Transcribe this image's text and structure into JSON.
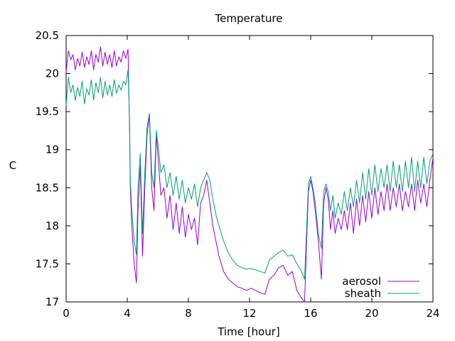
{
  "chart_data": {
    "type": "line",
    "title": "Temperature",
    "xlabel": "Time [hour]",
    "ylabel": "C",
    "xlim": [
      0,
      24
    ],
    "ylim": [
      17,
      20.5
    ],
    "xticks": [
      0,
      4,
      8,
      12,
      16,
      20,
      24
    ],
    "yticks": [
      17,
      17.5,
      18,
      18.5,
      19,
      19.5,
      20,
      20.5
    ],
    "xtick_labels": [
      "0",
      "4",
      "8",
      "12",
      "16",
      "20",
      "24"
    ],
    "ytick_labels": [
      "17",
      "17.5",
      "18",
      "18.5",
      "19",
      "19.5",
      "20",
      "20.5"
    ],
    "grid": false,
    "legend_position": "bottom-right",
    "series": [
      {
        "name": "aerosol",
        "color": "#9400d3",
        "x": [
          0,
          0.15,
          0.3,
          0.45,
          0.6,
          0.75,
          0.9,
          1.05,
          1.2,
          1.35,
          1.5,
          1.65,
          1.8,
          1.95,
          2.1,
          2.25,
          2.4,
          2.55,
          2.7,
          2.85,
          3.0,
          3.15,
          3.3,
          3.45,
          3.6,
          3.75,
          3.9,
          4.05,
          4.15,
          4.2,
          4.3,
          4.45,
          4.6,
          4.7,
          4.85,
          5.0,
          5.15,
          5.3,
          5.45,
          5.6,
          5.75,
          5.9,
          6.05,
          6.2,
          6.4,
          6.6,
          6.8,
          7.0,
          7.2,
          7.4,
          7.6,
          7.8,
          8.0,
          8.2,
          8.4,
          8.6,
          8.8,
          9.0,
          9.2,
          9.4,
          9.6,
          9.8,
          10.0,
          10.3,
          10.6,
          10.9,
          11.2,
          11.5,
          11.8,
          12.1,
          12.4,
          12.7,
          13.0,
          13.3,
          13.6,
          13.9,
          14.2,
          14.5,
          14.8,
          15.1,
          15.4,
          15.6,
          15.7,
          15.85,
          16.0,
          16.15,
          16.3,
          16.5,
          16.7,
          16.85,
          17.0,
          17.15,
          17.3,
          17.45,
          17.6,
          17.8,
          18.0,
          18.2,
          18.4,
          18.6,
          18.8,
          19.0,
          19.2,
          19.4,
          19.6,
          19.8,
          20.0,
          20.2,
          20.4,
          20.6,
          20.8,
          21.0,
          21.2,
          21.4,
          21.6,
          21.8,
          22.0,
          22.2,
          22.4,
          22.6,
          22.8,
          23.0,
          23.2,
          23.4,
          23.6,
          23.8,
          24.0
        ],
        "y": [
          20.02,
          20.3,
          20.18,
          20.25,
          20.05,
          20.2,
          20.1,
          20.28,
          20.08,
          20.22,
          20.12,
          20.3,
          20.05,
          20.25,
          20.15,
          20.35,
          20.1,
          20.28,
          20.12,
          20.25,
          20.08,
          20.3,
          20.1,
          20.22,
          20.15,
          20.3,
          20.2,
          20.32,
          19.3,
          18.5,
          18.0,
          17.5,
          17.25,
          18.2,
          18.8,
          17.6,
          18.5,
          19.2,
          19.45,
          18.5,
          18.2,
          19.2,
          18.8,
          18.4,
          18.5,
          18.1,
          18.4,
          17.95,
          18.3,
          17.9,
          18.25,
          17.85,
          18.15,
          17.95,
          18.1,
          17.75,
          18.3,
          18.4,
          18.6,
          18.3,
          18.0,
          17.8,
          17.6,
          17.4,
          17.3,
          17.25,
          17.2,
          17.18,
          17.15,
          17.18,
          17.15,
          17.12,
          17.1,
          17.3,
          17.35,
          17.45,
          17.48,
          17.35,
          17.4,
          17.15,
          17.05,
          16.98,
          17.6,
          18.45,
          18.6,
          18.45,
          18.2,
          17.8,
          17.3,
          18.3,
          18.5,
          18.35,
          17.95,
          18.2,
          17.9,
          18.1,
          17.95,
          18.2,
          17.95,
          18.3,
          17.9,
          18.35,
          18.0,
          18.4,
          18.05,
          18.45,
          18.1,
          18.5,
          18.15,
          18.45,
          18.2,
          18.55,
          18.2,
          18.5,
          18.25,
          18.55,
          18.2,
          18.45,
          18.25,
          18.55,
          18.2,
          18.6,
          18.3,
          18.55,
          18.25,
          18.6,
          18.9
        ]
      },
      {
        "name": "sheath",
        "color": "#009e73",
        "x": [
          0,
          0.15,
          0.3,
          0.45,
          0.6,
          0.75,
          0.9,
          1.05,
          1.2,
          1.35,
          1.5,
          1.65,
          1.8,
          1.95,
          2.1,
          2.25,
          2.4,
          2.55,
          2.7,
          2.85,
          3.0,
          3.15,
          3.3,
          3.45,
          3.6,
          3.75,
          3.9,
          4.05,
          4.15,
          4.2,
          4.3,
          4.45,
          4.6,
          4.7,
          4.85,
          5.0,
          5.15,
          5.3,
          5.45,
          5.6,
          5.75,
          5.9,
          6.05,
          6.2,
          6.4,
          6.6,
          6.8,
          7.0,
          7.2,
          7.4,
          7.6,
          7.8,
          8.0,
          8.2,
          8.4,
          8.6,
          8.8,
          9.0,
          9.2,
          9.4,
          9.6,
          9.8,
          10.0,
          10.3,
          10.6,
          10.9,
          11.2,
          11.5,
          11.8,
          12.1,
          12.4,
          12.7,
          13.0,
          13.3,
          13.6,
          13.9,
          14.2,
          14.5,
          14.8,
          15.1,
          15.4,
          15.6,
          15.7,
          15.85,
          16.0,
          16.15,
          16.3,
          16.5,
          16.7,
          16.85,
          17.0,
          17.15,
          17.3,
          17.45,
          17.6,
          17.8,
          18.0,
          18.2,
          18.4,
          18.6,
          18.8,
          19.0,
          19.2,
          19.4,
          19.6,
          19.8,
          20.0,
          20.2,
          20.4,
          20.6,
          20.8,
          21.0,
          21.2,
          21.4,
          21.6,
          21.8,
          22.0,
          22.2,
          22.4,
          22.6,
          22.8,
          23.0,
          23.2,
          23.4,
          23.6,
          23.8,
          24.0
        ],
        "y": [
          19.58,
          19.95,
          19.75,
          19.85,
          19.65,
          19.82,
          19.7,
          19.9,
          19.6,
          19.8,
          19.72,
          19.92,
          19.65,
          19.88,
          19.75,
          19.95,
          19.68,
          19.9,
          19.72,
          19.85,
          19.7,
          19.92,
          19.74,
          19.85,
          19.78,
          19.9,
          19.85,
          20.05,
          19.4,
          18.6,
          18.2,
          17.8,
          17.62,
          18.5,
          18.95,
          17.9,
          18.7,
          19.3,
          19.48,
          18.7,
          18.5,
          19.25,
          19.0,
          18.7,
          18.8,
          18.5,
          18.7,
          18.4,
          18.65,
          18.35,
          18.6,
          18.3,
          18.5,
          18.35,
          18.55,
          18.25,
          18.5,
          18.6,
          18.7,
          18.6,
          18.35,
          18.15,
          18.0,
          17.8,
          17.65,
          17.55,
          17.48,
          17.45,
          17.43,
          17.44,
          17.42,
          17.4,
          17.38,
          17.55,
          17.6,
          17.65,
          17.68,
          17.6,
          17.62,
          17.5,
          17.4,
          17.3,
          17.8,
          18.55,
          18.65,
          18.5,
          18.3,
          17.9,
          17.7,
          18.45,
          18.55,
          18.45,
          18.2,
          18.4,
          18.1,
          18.3,
          18.15,
          18.45,
          18.2,
          18.5,
          18.25,
          18.6,
          18.3,
          18.7,
          18.35,
          18.75,
          18.4,
          18.8,
          18.45,
          18.75,
          18.5,
          18.8,
          18.45,
          18.85,
          18.5,
          18.8,
          18.45,
          18.85,
          18.5,
          18.9,
          18.45,
          18.85,
          18.5,
          18.9,
          18.55,
          18.85,
          18.95
        ]
      }
    ]
  }
}
